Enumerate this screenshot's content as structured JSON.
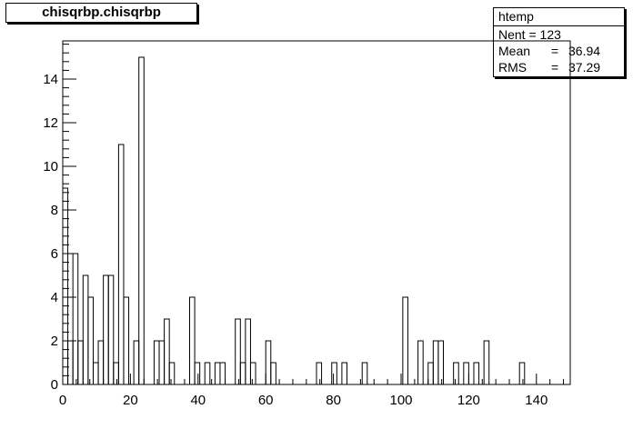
{
  "title": "chisqrbp.chisqrbp",
  "stats": {
    "name": "htemp",
    "entries_label": "Nent = 123",
    "mean_label": "Mean",
    "mean_value": "36.94",
    "rms_label": "RMS",
    "rms_value": "37.29",
    "equals": "="
  },
  "chart_data": {
    "type": "bar",
    "subtype": "histogram",
    "xlim": [
      0,
      150
    ],
    "ylim": [
      0,
      15.75
    ],
    "bin_width": 1.5,
    "x_ticks": [
      0,
      20,
      40,
      60,
      80,
      100,
      120,
      140
    ],
    "y_ticks": [
      0,
      2,
      4,
      6,
      8,
      10,
      12,
      14
    ],
    "counts": [
      9,
      2,
      6,
      2,
      5,
      4,
      1,
      2,
      5,
      5,
      1,
      11,
      4,
      0,
      2,
      15,
      0,
      0,
      2,
      2,
      3,
      1,
      0,
      0,
      0,
      4,
      1,
      0,
      1,
      0,
      1,
      1,
      0,
      0,
      3,
      1,
      3,
      1,
      0,
      0,
      2,
      1,
      0,
      0,
      0,
      0,
      0,
      0,
      0,
      0,
      1,
      0,
      0,
      1,
      0,
      1,
      0,
      0,
      0,
      1,
      0,
      0,
      0,
      0,
      0,
      0,
      0,
      4,
      0,
      0,
      2,
      0,
      1,
      2,
      2,
      0,
      0,
      1,
      0,
      1,
      0,
      1,
      0,
      2,
      0,
      0,
      0,
      0,
      0,
      0,
      1,
      0,
      0,
      0,
      0,
      0,
      0,
      0,
      0,
      0
    ],
    "line_color": "#000000",
    "grid": false
  }
}
